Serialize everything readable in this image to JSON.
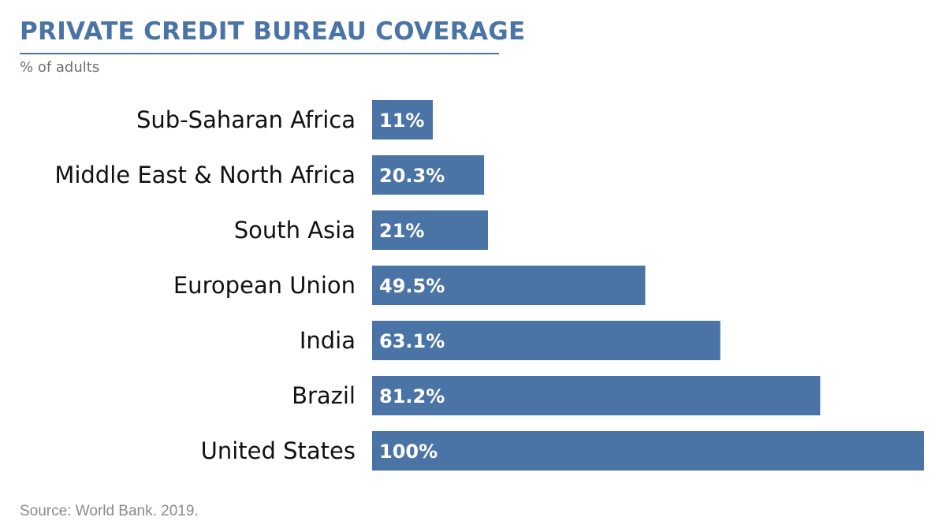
{
  "title": "PRIVATE CREDIT BUREAU COVERAGE",
  "subtitle": "% of adults",
  "source": "Source: World Bank. 2019.",
  "colors": {
    "bar": "#4a73a6",
    "title": "#4a73a6",
    "bar_label": "#ffffff",
    "category_label": "#111111"
  },
  "chart_data": {
    "type": "bar",
    "orientation": "horizontal",
    "categories": [
      "Sub-Saharan Africa",
      "Middle East & North Africa",
      "South Asia",
      "European Union",
      "India",
      "Brazil",
      "United States"
    ],
    "values": [
      11,
      20.3,
      21,
      49.5,
      63.1,
      81.2,
      100
    ],
    "data_labels": [
      "11%",
      "20.3%",
      "21%",
      "49.5%",
      "63.1%",
      "81.2%",
      "100%"
    ],
    "xlim": [
      0,
      100
    ],
    "grid": false,
    "legend": "none"
  }
}
